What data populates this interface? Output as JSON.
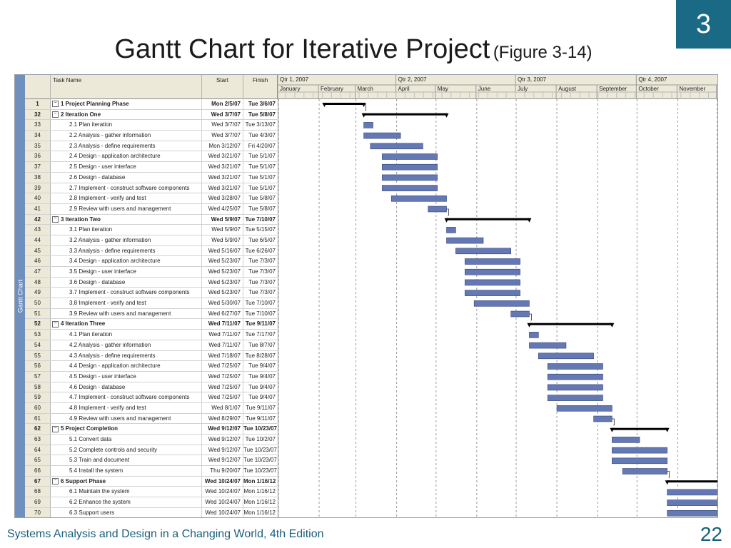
{
  "slide": {
    "chapter": "3",
    "title": "Gantt Chart for Iterative Project",
    "figure_ref": "(Figure 3-14)",
    "footer": "Systems Analysis and Design in a Changing World, 4th Edition",
    "page_number": "22"
  },
  "colors": {
    "accent": "#1a6a86",
    "bar": "#6478b4",
    "summary_bar": "#000000",
    "side_strip": "#6f8fbf"
  },
  "gantt": {
    "side_label": "Gantt Chart",
    "headers": {
      "task_name": "Task Name",
      "start": "Start",
      "finish": "Finish"
    },
    "quarters": [
      "Qtr 1, 2007",
      "Qtr 2, 2007",
      "Qtr 3, 2007",
      "Qtr 4, 2007"
    ],
    "months": [
      "January",
      "February",
      "March",
      "April",
      "May",
      "June",
      "July",
      "August",
      "September",
      "October",
      "November"
    ],
    "tasks": [
      {
        "id": "1",
        "name": "1 Project Planning Phase",
        "start": "Mon 2/5/07",
        "finish": "Tue 3/6/07",
        "summary": true
      },
      {
        "id": "32",
        "name": "2 Iteration One",
        "start": "Wed 3/7/07",
        "finish": "Tue 5/8/07",
        "summary": true
      },
      {
        "id": "33",
        "name": "2.1 Plan iteration",
        "start": "Wed 3/7/07",
        "finish": "Tue 3/13/07",
        "summary": false
      },
      {
        "id": "34",
        "name": "2.2 Analysis - gather information",
        "start": "Wed 3/7/07",
        "finish": "Tue 4/3/07",
        "summary": false
      },
      {
        "id": "35",
        "name": "2.3 Analysis - define requirements",
        "start": "Mon 3/12/07",
        "finish": "Fri 4/20/07",
        "summary": false
      },
      {
        "id": "36",
        "name": "2.4 Design - application architecture",
        "start": "Wed 3/21/07",
        "finish": "Tue 5/1/07",
        "summary": false
      },
      {
        "id": "37",
        "name": "2.5 Design - user interface",
        "start": "Wed 3/21/07",
        "finish": "Tue 5/1/07",
        "summary": false
      },
      {
        "id": "38",
        "name": "2.6 Design - database",
        "start": "Wed 3/21/07",
        "finish": "Tue 5/1/07",
        "summary": false
      },
      {
        "id": "39",
        "name": "2.7 Implement - construct software components",
        "start": "Wed 3/21/07",
        "finish": "Tue 5/1/07",
        "summary": false
      },
      {
        "id": "40",
        "name": "2.8 Implement - verify and test",
        "start": "Wed 3/28/07",
        "finish": "Tue 5/8/07",
        "summary": false
      },
      {
        "id": "41",
        "name": "2.9 Review with users and management",
        "start": "Wed 4/25/07",
        "finish": "Tue 5/8/07",
        "summary": false
      },
      {
        "id": "42",
        "name": "3 Iteration Two",
        "start": "Wed 5/9/07",
        "finish": "Tue 7/10/07",
        "summary": true
      },
      {
        "id": "43",
        "name": "3.1 Plan iteration",
        "start": "Wed 5/9/07",
        "finish": "Tue 5/15/07",
        "summary": false
      },
      {
        "id": "44",
        "name": "3.2 Analysis - gather information",
        "start": "Wed 5/9/07",
        "finish": "Tue 6/5/07",
        "summary": false
      },
      {
        "id": "45",
        "name": "3.3 Analysis - define requirements",
        "start": "Wed 5/16/07",
        "finish": "Tue 6/26/07",
        "summary": false
      },
      {
        "id": "46",
        "name": "3.4 Design - application architecture",
        "start": "Wed 5/23/07",
        "finish": "Tue 7/3/07",
        "summary": false
      },
      {
        "id": "47",
        "name": "3.5 Design - user interface",
        "start": "Wed 5/23/07",
        "finish": "Tue 7/3/07",
        "summary": false
      },
      {
        "id": "48",
        "name": "3.6 Design - database",
        "start": "Wed 5/23/07",
        "finish": "Tue 7/3/07",
        "summary": false
      },
      {
        "id": "49",
        "name": "3.7 Implement - construct software components",
        "start": "Wed 5/23/07",
        "finish": "Tue 7/3/07",
        "summary": false
      },
      {
        "id": "50",
        "name": "3.8 Implement - verify and test",
        "start": "Wed 5/30/07",
        "finish": "Tue 7/10/07",
        "summary": false
      },
      {
        "id": "51",
        "name": "3.9 Review with users and management",
        "start": "Wed 6/27/07",
        "finish": "Tue 7/10/07",
        "summary": false
      },
      {
        "id": "52",
        "name": "4 Iteration Three",
        "start": "Wed 7/11/07",
        "finish": "Tue 9/11/07",
        "summary": true
      },
      {
        "id": "53",
        "name": "4.1 Plan iteration",
        "start": "Wed 7/11/07",
        "finish": "Tue 7/17/07",
        "summary": false
      },
      {
        "id": "54",
        "name": "4.2 Analysis - gather information",
        "start": "Wed 7/11/07",
        "finish": "Tue 8/7/07",
        "summary": false
      },
      {
        "id": "55",
        "name": "4.3 Analysis - define requirements",
        "start": "Wed 7/18/07",
        "finish": "Tue 8/28/07",
        "summary": false
      },
      {
        "id": "56",
        "name": "4.4 Design - application architecture",
        "start": "Wed 7/25/07",
        "finish": "Tue 9/4/07",
        "summary": false
      },
      {
        "id": "57",
        "name": "4.5 Design - user interface",
        "start": "Wed 7/25/07",
        "finish": "Tue 9/4/07",
        "summary": false
      },
      {
        "id": "58",
        "name": "4.6 Design - database",
        "start": "Wed 7/25/07",
        "finish": "Tue 9/4/07",
        "summary": false
      },
      {
        "id": "59",
        "name": "4.7 Implement - construct software components",
        "start": "Wed 7/25/07",
        "finish": "Tue 9/4/07",
        "summary": false
      },
      {
        "id": "60",
        "name": "4.8 Implement - verify and test",
        "start": "Wed 8/1/07",
        "finish": "Tue 9/11/07",
        "summary": false
      },
      {
        "id": "61",
        "name": "4.9 Review with users and management",
        "start": "Wed 8/29/07",
        "finish": "Tue 9/11/07",
        "summary": false
      },
      {
        "id": "62",
        "name": "5 Project Completion",
        "start": "Wed 9/12/07",
        "finish": "Tue 10/23/07",
        "summary": true
      },
      {
        "id": "63",
        "name": "5.1 Convert data",
        "start": "Wed 9/12/07",
        "finish": "Tue 10/2/07",
        "summary": false
      },
      {
        "id": "64",
        "name": "5.2 Complete controls and security",
        "start": "Wed 9/12/07",
        "finish": "Tue 10/23/07",
        "summary": false
      },
      {
        "id": "65",
        "name": "5.3 Train and document",
        "start": "Wed 9/12/07",
        "finish": "Tue 10/23/07",
        "summary": false
      },
      {
        "id": "66",
        "name": "5.4 Install the system",
        "start": "Thu 9/20/07",
        "finish": "Tue 10/23/07",
        "summary": false
      },
      {
        "id": "67",
        "name": "6 Support Phase",
        "start": "Wed 10/24/07",
        "finish": "Mon 1/16/12",
        "summary": true
      },
      {
        "id": "68",
        "name": "6.1 Maintain the system",
        "start": "Wed 10/24/07",
        "finish": "Mon 1/16/12",
        "summary": false
      },
      {
        "id": "69",
        "name": "6.2 Enhance the system",
        "start": "Wed 10/24/07",
        "finish": "Mon 1/16/12",
        "summary": false
      },
      {
        "id": "70",
        "name": "6.3 Support users",
        "start": "Wed 10/24/07",
        "finish": "Mon 1/16/12",
        "summary": false
      }
    ]
  }
}
